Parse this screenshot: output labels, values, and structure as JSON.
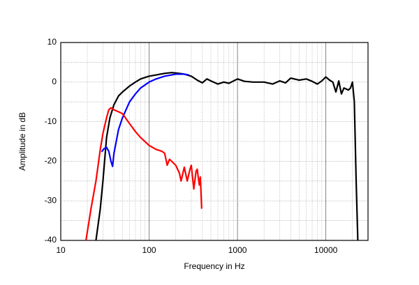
{
  "chart_data": {
    "type": "line",
    "xlabel": "Frequency in Hz",
    "ylabel": "Amplitude in dB",
    "xscale": "log",
    "xlim": [
      10,
      30000
    ],
    "xticks": [
      10,
      100,
      1000,
      10000
    ],
    "ylim": [
      -40,
      10
    ],
    "yticks": [
      -40,
      -30,
      -20,
      -10,
      0,
      10
    ],
    "grid": true,
    "series": [
      {
        "color": "#000000",
        "x": [
          25,
          28,
          30,
          33,
          36,
          40,
          45,
          50,
          60,
          70,
          80,
          100,
          120,
          150,
          180,
          200,
          250,
          300,
          350,
          400,
          450,
          500,
          600,
          700,
          800,
          1000,
          1200,
          1500,
          2000,
          2500,
          3000,
          3500,
          4000,
          5000,
          6000,
          7000,
          8000,
          9000,
          10000,
          11000,
          12000,
          13000,
          14000,
          15000,
          16000,
          18000,
          19000,
          20000,
          21000,
          22000,
          23000
        ],
        "values": [
          -40,
          -32,
          -25,
          -14,
          -9,
          -5.7,
          -3.5,
          -2.5,
          -1,
          0,
          0.8,
          1.5,
          1.8,
          2.2,
          2.4,
          2.3,
          2,
          1.5,
          0.5,
          -0.2,
          0.8,
          0.3,
          -0.5,
          0,
          -0.3,
          0.8,
          0.2,
          0,
          0,
          -0.5,
          0.3,
          -0.2,
          1,
          0.5,
          0.8,
          0.2,
          -0.5,
          0.3,
          1.3,
          0.5,
          0,
          -2.5,
          0.3,
          -3,
          -1.5,
          -2,
          -1.5,
          0,
          -5,
          -25,
          -40
        ]
      },
      {
        "color": "#0000ff",
        "x": [
          29,
          31,
          33,
          35,
          37,
          38.6,
          40,
          45,
          50,
          60,
          70,
          80,
          100,
          120,
          150,
          200,
          250,
          282
        ],
        "values": [
          -17.6,
          -16.8,
          -16.5,
          -17.5,
          -20,
          -21.3,
          -18,
          -12,
          -9,
          -5,
          -3,
          -1.5,
          0,
          0.8,
          1.5,
          2,
          2,
          1.8
        ]
      },
      {
        "color": "#ff0000",
        "x": [
          19.3,
          22,
          25,
          28,
          30,
          33,
          35,
          37,
          40,
          45,
          50,
          60,
          70,
          80,
          100,
          120,
          140,
          150,
          160,
          170,
          180,
          200,
          220,
          230,
          250,
          270,
          290,
          300,
          320,
          340,
          350,
          370,
          380,
          393
        ],
        "values": [
          -40,
          -32,
          -25,
          -17,
          -13,
          -9,
          -7,
          -6.5,
          -7,
          -7.5,
          -8,
          -10.5,
          -12.5,
          -14,
          -16,
          -17,
          -17.5,
          -18,
          -21,
          -19.5,
          -20,
          -21,
          -23,
          -25,
          -21.5,
          -25,
          -22,
          -21,
          -27,
          -22.5,
          -22,
          -26,
          -24,
          -32
        ]
      }
    ]
  }
}
